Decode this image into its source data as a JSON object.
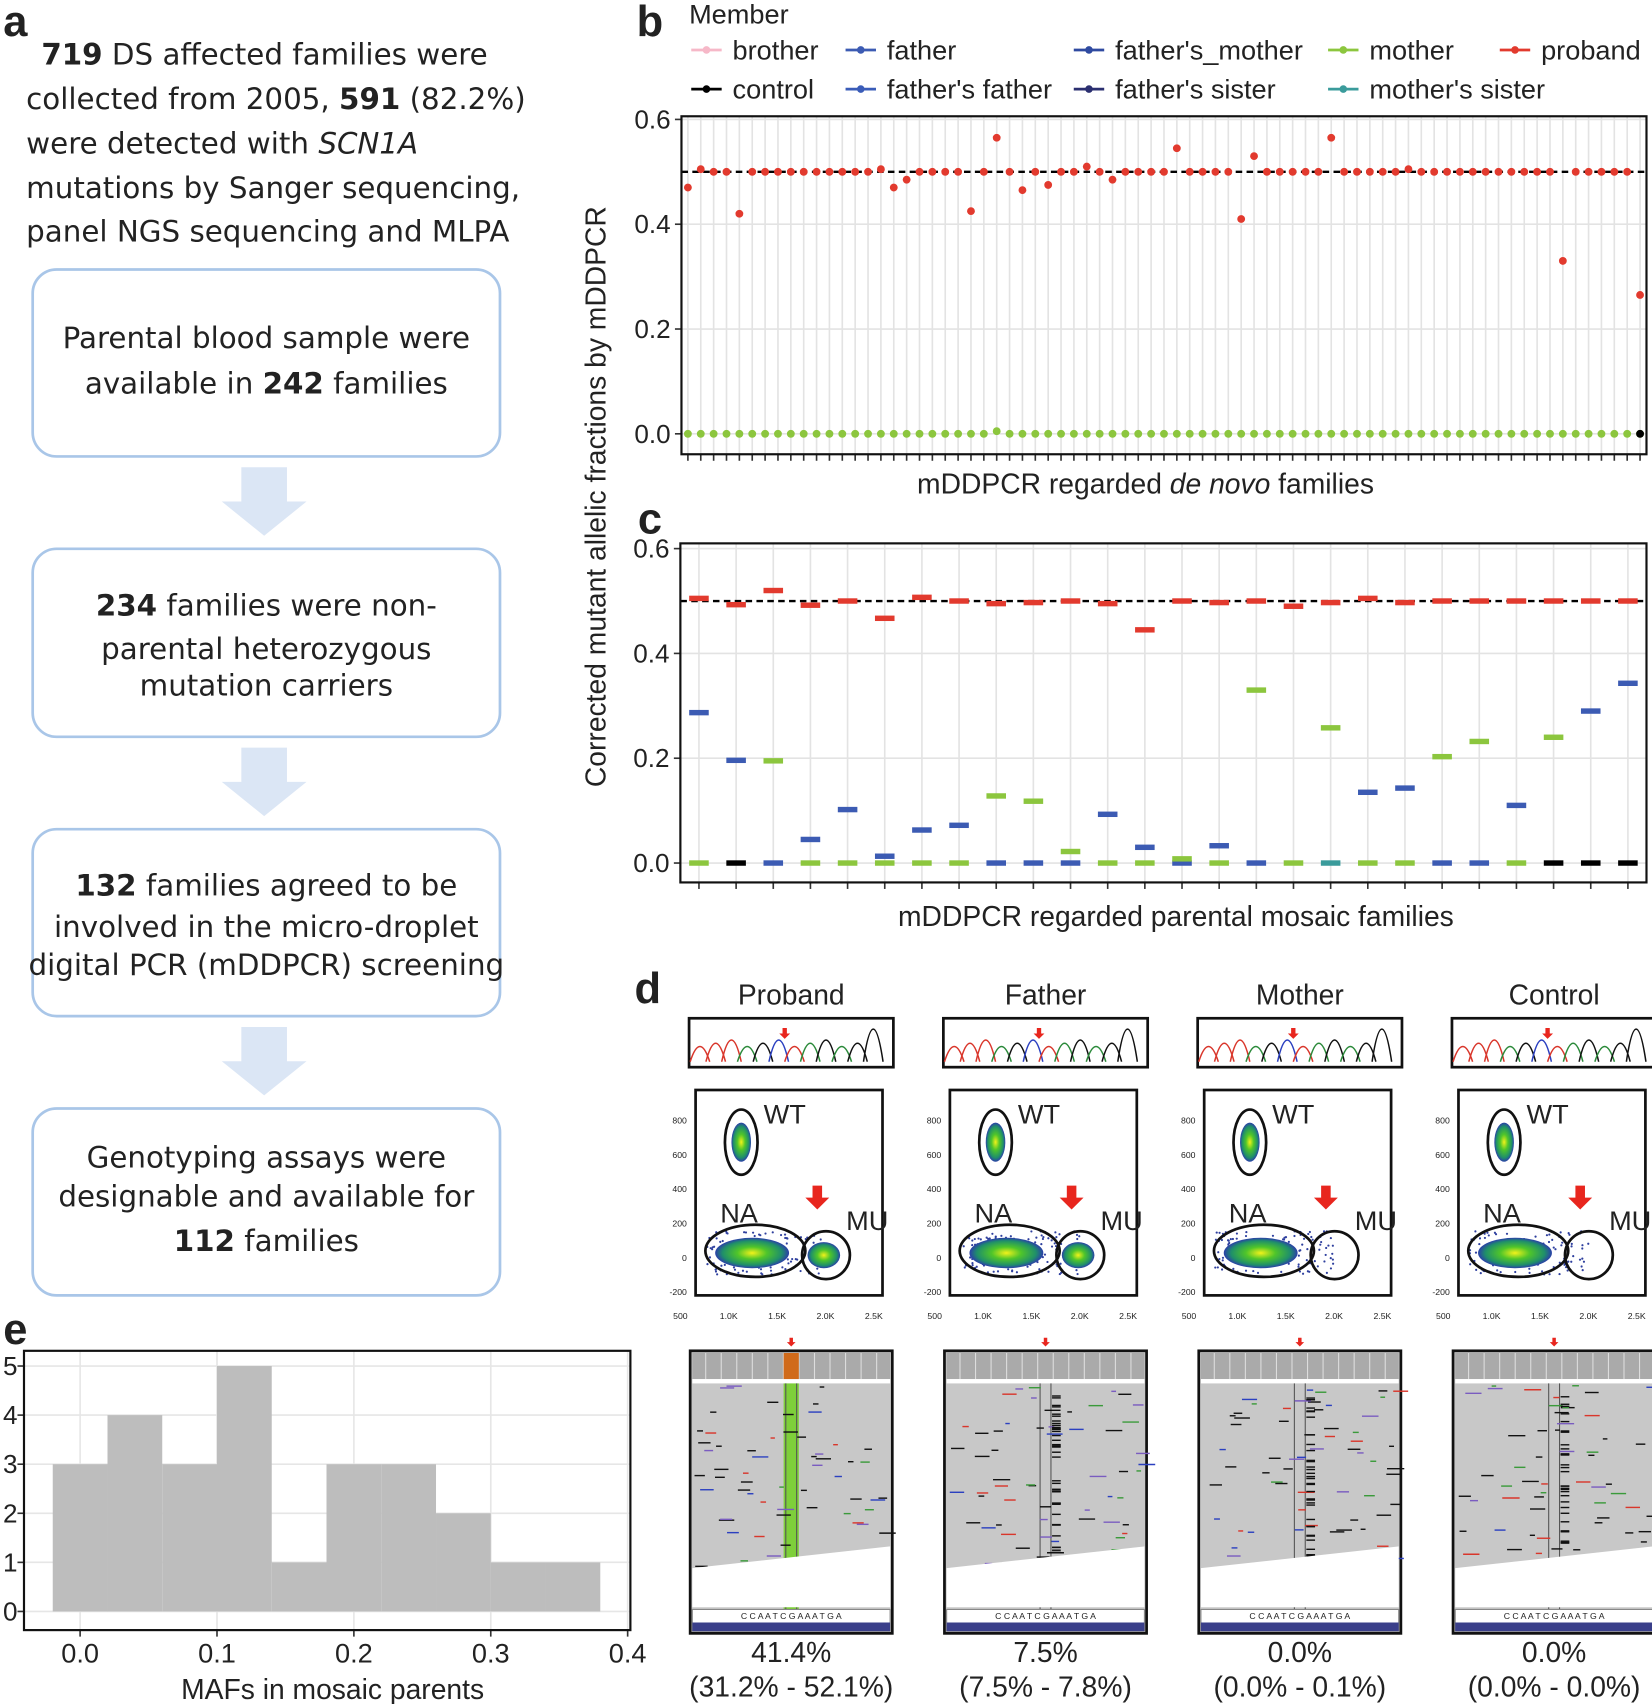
{
  "panel_labels": [
    "a",
    "b",
    "c",
    "d",
    "e"
  ],
  "shared_ylabel": "Corrected mutant allelic fractions by mDDPCR",
  "flow": {
    "intro": [
      [
        {
          "text": "719",
          "style": "bold"
        },
        {
          "text": " DS affected families were"
        }
      ],
      [
        {
          "text": "collected from 2005, "
        },
        {
          "text": "591",
          "style": "bold"
        },
        {
          "text": " (82.2%)"
        }
      ],
      [
        {
          "text": "were detected with "
        },
        {
          "text": "SCN1A",
          "style": "italic"
        }
      ],
      [
        {
          "text": "mutations by Sanger sequencing,"
        }
      ],
      [
        {
          "text": "panel NGS sequencing and MLPA"
        }
      ]
    ],
    "boxes": [
      [
        [
          {
            "text": "Parental blood sample were"
          }
        ],
        [
          {
            "text": "available in "
          },
          {
            "text": "242",
            "style": "bold"
          },
          {
            "text": " families"
          }
        ]
      ],
      [
        [
          {
            "text": "234",
            "style": "bold"
          },
          {
            "text": " families were non-"
          }
        ],
        [
          {
            "text": "parental heterozygous"
          }
        ],
        [
          {
            "text": "mutation carriers"
          }
        ]
      ],
      [
        [
          {
            "text": "132",
            "style": "bold"
          },
          {
            "text": " families agreed to be"
          }
        ],
        [
          {
            "text": "involved in the micro-droplet"
          }
        ],
        [
          {
            "text": "digital PCR (mDDPCR) screening"
          }
        ]
      ],
      [
        [
          {
            "text": "Genotyping assays were"
          }
        ],
        [
          {
            "text": "designable and available for"
          }
        ],
        [
          {
            "text": "112",
            "style": "bold"
          },
          {
            "text": " families"
          }
        ]
      ]
    ]
  },
  "chart_data": [
    {
      "type": "dotplot",
      "marker": "dot",
      "xlabel": [
        {
          "text": "mDDPCR regarded "
        },
        {
          "text": "de novo",
          "style": "italic"
        },
        {
          "text": " families"
        }
      ],
      "legend": {
        "title": "Member",
        "position": "top",
        "entries": [
          {
            "name": "brother",
            "color": "#f6b8c8"
          },
          {
            "name": "father",
            "color": "#3c5bb3"
          },
          {
            "name": "father's_mother",
            "color": "#2f4aa0"
          },
          {
            "name": "mother",
            "color": "#8cc63e"
          },
          {
            "name": "proband",
            "color": "#e23a2e"
          },
          {
            "name": "control",
            "color": "#000000"
          },
          {
            "name": "father's father",
            "color": "#3a5cb8"
          },
          {
            "name": "father's sister",
            "color": "#2b2f70"
          },
          {
            "name": "mother's sister",
            "color": "#3a9b9b"
          }
        ]
      },
      "categories": [
        null,
        null,
        null,
        null,
        null,
        null,
        null,
        null,
        null,
        null,
        null,
        null,
        null,
        null,
        null,
        null,
        null,
        null,
        null,
        null,
        null,
        null,
        null,
        null,
        null,
        null,
        null,
        null,
        null,
        null,
        null,
        null,
        null,
        null,
        null,
        null,
        null,
        null,
        null,
        null,
        null,
        null,
        null,
        null,
        null,
        null,
        null,
        null,
        null,
        null,
        null,
        null,
        null,
        null,
        null,
        null,
        null,
        null,
        null,
        null,
        null,
        null,
        null,
        null,
        null,
        null,
        null,
        null,
        null,
        null,
        null,
        null,
        null,
        null,
        null
      ],
      "series": [
        {
          "name": "mother",
          "color": "#8cc63e",
          "values": [
            0,
            0,
            0,
            0,
            0,
            0,
            0,
            0,
            0,
            0,
            0,
            0,
            0,
            0,
            0,
            0,
            0,
            0,
            0,
            0,
            0,
            0,
            0,
            0,
            0.005,
            0,
            0,
            0,
            0,
            0,
            0,
            0,
            0,
            0,
            0,
            0,
            0,
            0,
            0,
            0,
            0,
            0,
            0,
            0,
            0,
            0,
            0,
            0,
            0,
            0,
            0,
            0,
            0,
            0,
            0,
            0,
            0,
            0,
            0,
            0,
            0,
            0,
            0,
            0,
            0,
            0,
            0,
            0,
            0,
            0,
            0,
            0,
            0,
            0,
            0
          ]
        },
        {
          "name": "control",
          "color": "#000000",
          "values": [
            null,
            null,
            null,
            null,
            null,
            null,
            null,
            null,
            null,
            null,
            null,
            null,
            null,
            null,
            null,
            null,
            null,
            null,
            null,
            null,
            null,
            null,
            null,
            null,
            null,
            null,
            null,
            null,
            null,
            null,
            null,
            null,
            null,
            null,
            null,
            null,
            null,
            null,
            null,
            null,
            null,
            null,
            null,
            null,
            null,
            null,
            null,
            null,
            null,
            null,
            null,
            null,
            null,
            null,
            null,
            null,
            null,
            null,
            null,
            null,
            null,
            null,
            null,
            null,
            null,
            null,
            null,
            null,
            null,
            null,
            null,
            null,
            null,
            null,
            0
          ]
        },
        {
          "name": "proband",
          "color": "#e23a2e",
          "values": [
            0.47,
            0.505,
            0.5,
            0.5,
            0.42,
            0.5,
            0.5,
            0.5,
            0.5,
            0.5,
            0.5,
            0.5,
            0.5,
            0.5,
            0.5,
            0.505,
            0.47,
            0.485,
            0.5,
            0.5,
            0.5,
            0.5,
            0.425,
            0.5,
            0.565,
            0.5,
            0.465,
            0.5,
            0.475,
            0.5,
            0.5,
            0.51,
            0.5,
            0.485,
            0.5,
            0.5,
            0.5,
            0.5,
            0.545,
            0.5,
            0.5,
            0.5,
            0.5,
            0.41,
            0.53,
            0.5,
            0.5,
            0.5,
            0.5,
            0.5,
            0.565,
            0.5,
            0.5,
            0.5,
            0.5,
            0.5,
            0.505,
            0.5,
            0.5,
            0.5,
            0.5,
            0.5,
            0.5,
            0.5,
            0.5,
            0.5,
            0.5,
            0.5,
            0.33,
            0.5,
            0.5,
            0.5,
            0.5,
            0.5,
            0.265
          ]
        }
      ],
      "reference_line": 0.5,
      "ylim": [
        -0.039,
        0.606
      ],
      "yticks": [
        {
          "value": 0,
          "label": "0.0"
        },
        0.2,
        0.4,
        0.6
      ],
      "grid": true
    },
    {
      "type": "dotplot",
      "marker": "dash",
      "xlabel": [
        {
          "text": "mDDPCR regarded parental mosaic families"
        }
      ],
      "categories": [
        null,
        null,
        null,
        null,
        null,
        null,
        null,
        null,
        null,
        null,
        null,
        null,
        null,
        null,
        null,
        null,
        null,
        null,
        null,
        null,
        null,
        null,
        null,
        null,
        null,
        null
      ],
      "series": [
        {
          "name": "father",
          "color": "#3c5bb3",
          "values": [
            0.287,
            0.196,
            0,
            0.045,
            0.102,
            0.013,
            0.063,
            0.072,
            0,
            0,
            0,
            0.093,
            0.03,
            0,
            0.033,
            0,
            null,
            null,
            0.135,
            0.143,
            0,
            0,
            0.11,
            null,
            0.29,
            0.343
          ]
        },
        {
          "name": "mother",
          "color": "#8cc63e",
          "values": [
            0,
            null,
            0.195,
            0,
            0,
            0,
            0,
            0,
            0.128,
            0.118,
            0.022,
            0,
            0,
            0.008,
            0,
            0.33,
            0,
            0.258,
            0,
            0,
            0.203,
            0.232,
            0,
            0.24,
            null,
            null
          ]
        },
        {
          "name": "mother's sister",
          "color": "#3a9b9b",
          "values": [
            null,
            null,
            null,
            null,
            null,
            null,
            null,
            null,
            null,
            null,
            null,
            null,
            null,
            null,
            null,
            null,
            null,
            0,
            null,
            null,
            null,
            null,
            null,
            null,
            null,
            null
          ]
        },
        {
          "name": "control",
          "color": "#000000",
          "values": [
            null,
            0,
            null,
            null,
            null,
            null,
            null,
            null,
            null,
            null,
            null,
            null,
            null,
            null,
            null,
            null,
            null,
            null,
            null,
            null,
            null,
            null,
            null,
            0,
            0,
            0
          ]
        },
        {
          "name": "proband",
          "color": "#e23a2e",
          "values": [
            0.505,
            0.493,
            0.52,
            0.492,
            0.5,
            0.467,
            0.507,
            0.5,
            0.495,
            0.497,
            0.5,
            0.495,
            0.445,
            0.5,
            0.497,
            0.5,
            0.49,
            0.497,
            0.505,
            0.497,
            0.5,
            0.5,
            0.5,
            0.5,
            0.5,
            0.5
          ]
        }
      ],
      "reference_line": 0.5,
      "ylim": [
        -0.037,
        0.61
      ],
      "yticks": [
        {
          "value": 0,
          "label": "0.0"
        },
        0.2,
        0.4,
        0.6
      ],
      "grid": true
    },
    {
      "type": "histogram",
      "color": "#bdbdbd",
      "xlabel": [
        {
          "text": "MAFs in mosaic parents"
        }
      ],
      "bins": [
        -0.02,
        0.02,
        0.06,
        0.1,
        0.14,
        0.18,
        0.22,
        0.26,
        0.3,
        0.34,
        0.38
      ],
      "counts": [
        3,
        4,
        3,
        5,
        1,
        3,
        3,
        2,
        1,
        1
      ],
      "xlim": [
        -0.041,
        0.402
      ],
      "xticks": [
        {
          "value": 0,
          "label": "0.0"
        },
        0.1,
        0.2,
        0.3,
        0.4
      ],
      "ylim": [
        -0.38,
        5.31
      ],
      "yticks": [
        0,
        1,
        2,
        3,
        4,
        5
      ],
      "grid": true
    }
  ],
  "samples": {
    "cluster_labels": [
      "WT",
      "NA",
      "MU"
    ],
    "droplet_axis": {
      "yticks": [
        800,
        600,
        400,
        200,
        0,
        -200
      ],
      "xticks": [
        500,
        {
          "value": 1000,
          "label": "1.0K"
        },
        {
          "value": 1500,
          "label": "1.5K"
        },
        {
          "value": 2000,
          "label": "2.0K"
        },
        {
          "value": 2500,
          "label": "2.5K"
        }
      ],
      "xlim": [
        500,
        2500
      ],
      "ylim": [
        -200,
        800
      ]
    },
    "sequence": "C C A A T C G A A A T G A",
    "items": [
      {
        "name": "Proband",
        "maf": "41.4%",
        "range": "(31.2% - 52.1%)"
      },
      {
        "name": "Father",
        "maf": "7.5%",
        "range": "(7.5% - 7.8%)"
      },
      {
        "name": "Mother",
        "maf": "0.0%",
        "range": "(0.0% - 0.1%)"
      },
      {
        "name": "Control",
        "maf": "0.0%",
        "range": "(0.0% - 0.0%)"
      }
    ]
  }
}
